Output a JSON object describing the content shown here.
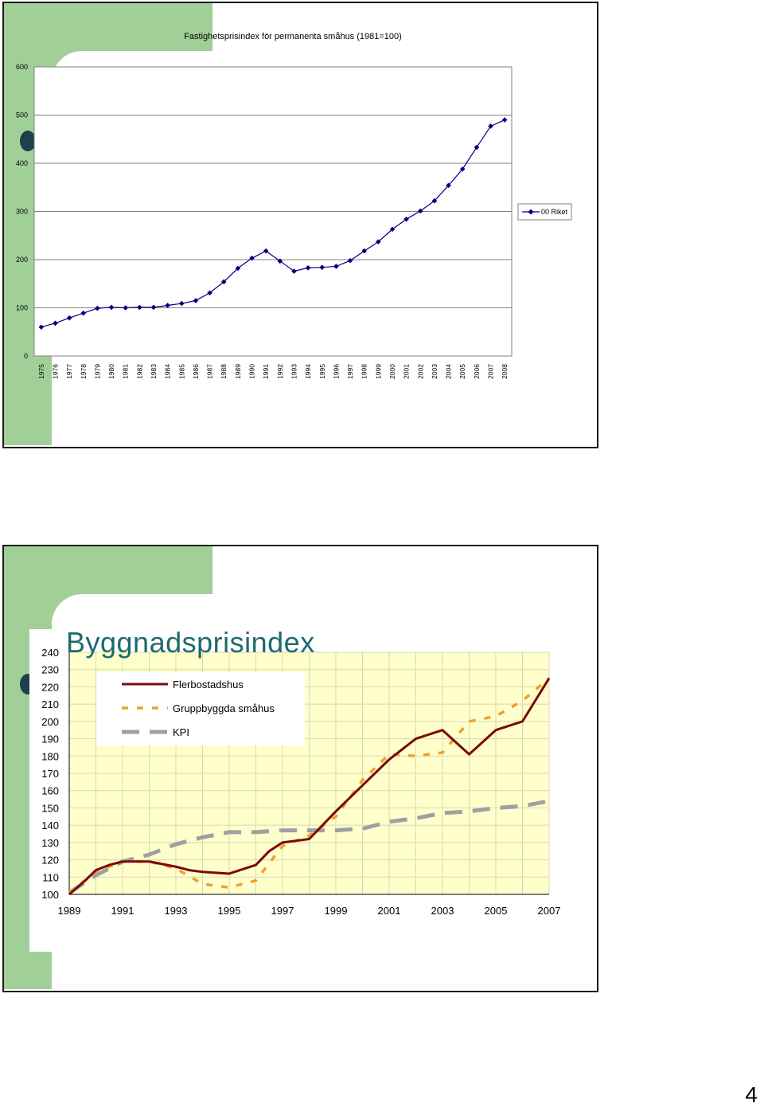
{
  "page_number": "4",
  "chart_data": [
    {
      "type": "line",
      "title": "Fastighetsprisindex för permanenta småhus (1981=100)",
      "ylim": [
        0,
        600
      ],
      "yticks": [
        0,
        100,
        200,
        300,
        400,
        500,
        600
      ],
      "grid": true,
      "legend_position": "right",
      "categories": [
        "1975",
        "1976",
        "1977",
        "1978",
        "1979",
        "1980",
        "1981",
        "1982",
        "1983",
        "1984",
        "1985",
        "1986",
        "1987",
        "1988",
        "1989",
        "1990",
        "1991",
        "1992",
        "1993",
        "1994",
        "1995",
        "1996",
        "1997",
        "1998",
        "1999",
        "2000",
        "2001",
        "2002",
        "2003",
        "2004",
        "2005",
        "2006",
        "2007",
        "2008"
      ],
      "series": [
        {
          "name": "00 Riket",
          "color": "#000080",
          "values": [
            60,
            68,
            79,
            89,
            99,
            101,
            100,
            101,
            101,
            105,
            109,
            115,
            131,
            154,
            182,
            203,
            218,
            197,
            176,
            183,
            184,
            186,
            198,
            218,
            237,
            263,
            284,
            301,
            322,
            354,
            388,
            433,
            477,
            490
          ]
        }
      ]
    },
    {
      "type": "line",
      "title": "Byggnadsprisindex",
      "ylim": [
        100,
        240
      ],
      "yticks": [
        100,
        110,
        120,
        130,
        140,
        150,
        160,
        170,
        180,
        190,
        200,
        210,
        220,
        230,
        240
      ],
      "xlim": [
        1989,
        2007
      ],
      "xticks": [
        1989,
        1991,
        1993,
        1995,
        1997,
        1999,
        2001,
        2003,
        2005,
        2007
      ],
      "grid": true,
      "background": "#ffffcc",
      "legend_position": "top-left",
      "series": [
        {
          "name": "Flerbostadshus",
          "color": "#7a0a0a",
          "style": "solid",
          "x": [
            1989,
            1989.6,
            1990,
            1990.5,
            1991,
            1992,
            1993,
            1993.5,
            1994,
            1995,
            1996,
            1996.5,
            1997,
            1998,
            1999,
            2000,
            2001,
            2002,
            2003,
            2004,
            2005,
            2006,
            2007
          ],
          "y": [
            100,
            108,
            114,
            117,
            119,
            119,
            116,
            114,
            113,
            112,
            117,
            125,
            130,
            132,
            148,
            163,
            178,
            190,
            195,
            181,
            195,
            200,
            225
          ]
        },
        {
          "name": "Gruppbyggda småhus",
          "color": "#f0a030",
          "style": "dashed",
          "x": [
            1989,
            1990,
            1991,
            1992,
            1993,
            1994,
            1995,
            1996,
            1997,
            1998,
            1999,
            2000,
            2001,
            2002,
            2003,
            2004,
            2005,
            2006,
            2007
          ],
          "y": [
            101,
            113,
            119,
            119,
            115,
            106,
            104,
            108,
            128,
            134,
            145,
            166,
            181,
            180,
            182,
            200,
            203,
            212,
            225
          ]
        },
        {
          "name": "KPI",
          "color": "#a0a0a0",
          "style": "dashed",
          "x": [
            1989,
            1990,
            1991,
            1992,
            1993,
            1994,
            1995,
            1996,
            1997,
            1998,
            1999,
            2000,
            2001,
            2002,
            2003,
            2004,
            2005,
            2006,
            2007
          ],
          "y": [
            101,
            111,
            119,
            123,
            129,
            133,
            136,
            136,
            137,
            137,
            137,
            138,
            142,
            144,
            147,
            148,
            150,
            151,
            154
          ]
        }
      ]
    }
  ]
}
